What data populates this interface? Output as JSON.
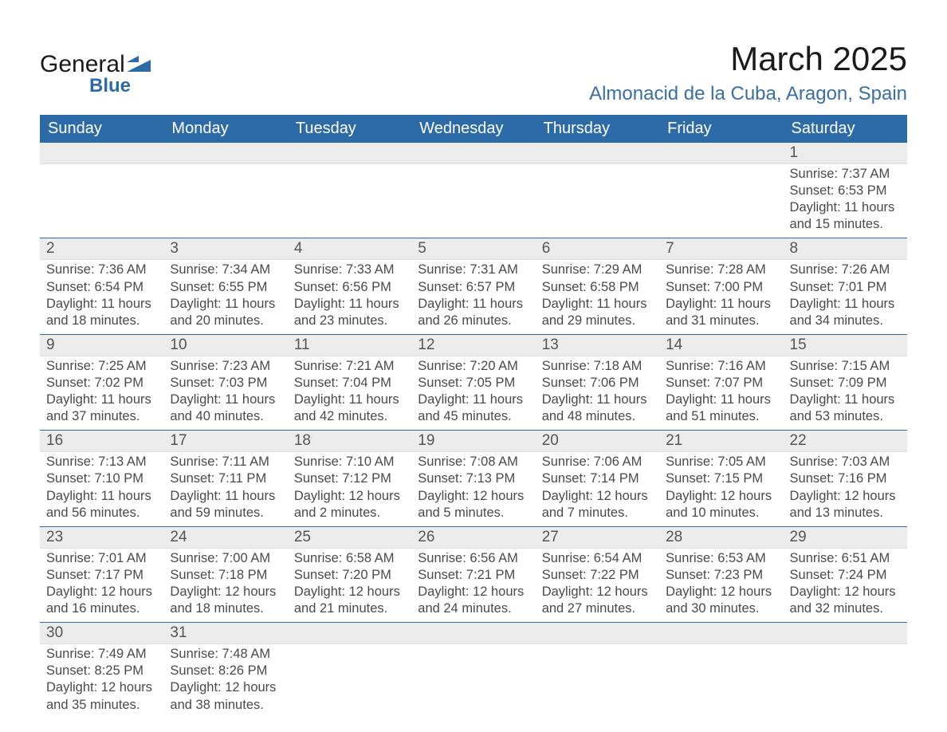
{
  "logo": {
    "main": "General",
    "sub": "Blue",
    "accent_color": "#2d6aa8"
  },
  "title": "March 2025",
  "location": "Almonacid de la Cuba, Aragon, Spain",
  "day_headers": [
    "Sunday",
    "Monday",
    "Tuesday",
    "Wednesday",
    "Thursday",
    "Friday",
    "Saturday"
  ],
  "colors": {
    "header_bg": "#2d6aa8",
    "header_text": "#ffffff",
    "daynum_bg": "#ececec",
    "border": "#2d6aa8",
    "body_text": "#4a4a4a",
    "title_text": "#1a1a1a"
  },
  "typography": {
    "title_fontsize_pt": 32,
    "location_fontsize_pt": 18,
    "header_fontsize_pt": 15,
    "cell_fontsize_pt": 12.5,
    "daynum_fontsize_pt": 14
  },
  "weeks": [
    {
      "nums": [
        "",
        "",
        "",
        "",
        "",
        "",
        "1"
      ],
      "cells": [
        null,
        null,
        null,
        null,
        null,
        null,
        {
          "sunrise": "Sunrise: 7:37 AM",
          "sunset": "Sunset: 6:53 PM",
          "dl1": "Daylight: 11 hours",
          "dl2": "and 15 minutes."
        }
      ]
    },
    {
      "nums": [
        "2",
        "3",
        "4",
        "5",
        "6",
        "7",
        "8"
      ],
      "cells": [
        {
          "sunrise": "Sunrise: 7:36 AM",
          "sunset": "Sunset: 6:54 PM",
          "dl1": "Daylight: 11 hours",
          "dl2": "and 18 minutes."
        },
        {
          "sunrise": "Sunrise: 7:34 AM",
          "sunset": "Sunset: 6:55 PM",
          "dl1": "Daylight: 11 hours",
          "dl2": "and 20 minutes."
        },
        {
          "sunrise": "Sunrise: 7:33 AM",
          "sunset": "Sunset: 6:56 PM",
          "dl1": "Daylight: 11 hours",
          "dl2": "and 23 minutes."
        },
        {
          "sunrise": "Sunrise: 7:31 AM",
          "sunset": "Sunset: 6:57 PM",
          "dl1": "Daylight: 11 hours",
          "dl2": "and 26 minutes."
        },
        {
          "sunrise": "Sunrise: 7:29 AM",
          "sunset": "Sunset: 6:58 PM",
          "dl1": "Daylight: 11 hours",
          "dl2": "and 29 minutes."
        },
        {
          "sunrise": "Sunrise: 7:28 AM",
          "sunset": "Sunset: 7:00 PM",
          "dl1": "Daylight: 11 hours",
          "dl2": "and 31 minutes."
        },
        {
          "sunrise": "Sunrise: 7:26 AM",
          "sunset": "Sunset: 7:01 PM",
          "dl1": "Daylight: 11 hours",
          "dl2": "and 34 minutes."
        }
      ]
    },
    {
      "nums": [
        "9",
        "10",
        "11",
        "12",
        "13",
        "14",
        "15"
      ],
      "cells": [
        {
          "sunrise": "Sunrise: 7:25 AM",
          "sunset": "Sunset: 7:02 PM",
          "dl1": "Daylight: 11 hours",
          "dl2": "and 37 minutes."
        },
        {
          "sunrise": "Sunrise: 7:23 AM",
          "sunset": "Sunset: 7:03 PM",
          "dl1": "Daylight: 11 hours",
          "dl2": "and 40 minutes."
        },
        {
          "sunrise": "Sunrise: 7:21 AM",
          "sunset": "Sunset: 7:04 PM",
          "dl1": "Daylight: 11 hours",
          "dl2": "and 42 minutes."
        },
        {
          "sunrise": "Sunrise: 7:20 AM",
          "sunset": "Sunset: 7:05 PM",
          "dl1": "Daylight: 11 hours",
          "dl2": "and 45 minutes."
        },
        {
          "sunrise": "Sunrise: 7:18 AM",
          "sunset": "Sunset: 7:06 PM",
          "dl1": "Daylight: 11 hours",
          "dl2": "and 48 minutes."
        },
        {
          "sunrise": "Sunrise: 7:16 AM",
          "sunset": "Sunset: 7:07 PM",
          "dl1": "Daylight: 11 hours",
          "dl2": "and 51 minutes."
        },
        {
          "sunrise": "Sunrise: 7:15 AM",
          "sunset": "Sunset: 7:09 PM",
          "dl1": "Daylight: 11 hours",
          "dl2": "and 53 minutes."
        }
      ]
    },
    {
      "nums": [
        "16",
        "17",
        "18",
        "19",
        "20",
        "21",
        "22"
      ],
      "cells": [
        {
          "sunrise": "Sunrise: 7:13 AM",
          "sunset": "Sunset: 7:10 PM",
          "dl1": "Daylight: 11 hours",
          "dl2": "and 56 minutes."
        },
        {
          "sunrise": "Sunrise: 7:11 AM",
          "sunset": "Sunset: 7:11 PM",
          "dl1": "Daylight: 11 hours",
          "dl2": "and 59 minutes."
        },
        {
          "sunrise": "Sunrise: 7:10 AM",
          "sunset": "Sunset: 7:12 PM",
          "dl1": "Daylight: 12 hours",
          "dl2": "and 2 minutes."
        },
        {
          "sunrise": "Sunrise: 7:08 AM",
          "sunset": "Sunset: 7:13 PM",
          "dl1": "Daylight: 12 hours",
          "dl2": "and 5 minutes."
        },
        {
          "sunrise": "Sunrise: 7:06 AM",
          "sunset": "Sunset: 7:14 PM",
          "dl1": "Daylight: 12 hours",
          "dl2": "and 7 minutes."
        },
        {
          "sunrise": "Sunrise: 7:05 AM",
          "sunset": "Sunset: 7:15 PM",
          "dl1": "Daylight: 12 hours",
          "dl2": "and 10 minutes."
        },
        {
          "sunrise": "Sunrise: 7:03 AM",
          "sunset": "Sunset: 7:16 PM",
          "dl1": "Daylight: 12 hours",
          "dl2": "and 13 minutes."
        }
      ]
    },
    {
      "nums": [
        "23",
        "24",
        "25",
        "26",
        "27",
        "28",
        "29"
      ],
      "cells": [
        {
          "sunrise": "Sunrise: 7:01 AM",
          "sunset": "Sunset: 7:17 PM",
          "dl1": "Daylight: 12 hours",
          "dl2": "and 16 minutes."
        },
        {
          "sunrise": "Sunrise: 7:00 AM",
          "sunset": "Sunset: 7:18 PM",
          "dl1": "Daylight: 12 hours",
          "dl2": "and 18 minutes."
        },
        {
          "sunrise": "Sunrise: 6:58 AM",
          "sunset": "Sunset: 7:20 PM",
          "dl1": "Daylight: 12 hours",
          "dl2": "and 21 minutes."
        },
        {
          "sunrise": "Sunrise: 6:56 AM",
          "sunset": "Sunset: 7:21 PM",
          "dl1": "Daylight: 12 hours",
          "dl2": "and 24 minutes."
        },
        {
          "sunrise": "Sunrise: 6:54 AM",
          "sunset": "Sunset: 7:22 PM",
          "dl1": "Daylight: 12 hours",
          "dl2": "and 27 minutes."
        },
        {
          "sunrise": "Sunrise: 6:53 AM",
          "sunset": "Sunset: 7:23 PM",
          "dl1": "Daylight: 12 hours",
          "dl2": "and 30 minutes."
        },
        {
          "sunrise": "Sunrise: 6:51 AM",
          "sunset": "Sunset: 7:24 PM",
          "dl1": "Daylight: 12 hours",
          "dl2": "and 32 minutes."
        }
      ]
    },
    {
      "nums": [
        "30",
        "31",
        "",
        "",
        "",
        "",
        ""
      ],
      "cells": [
        {
          "sunrise": "Sunrise: 7:49 AM",
          "sunset": "Sunset: 8:25 PM",
          "dl1": "Daylight: 12 hours",
          "dl2": "and 35 minutes."
        },
        {
          "sunrise": "Sunrise: 7:48 AM",
          "sunset": "Sunset: 8:26 PM",
          "dl1": "Daylight: 12 hours",
          "dl2": "and 38 minutes."
        },
        null,
        null,
        null,
        null,
        null
      ]
    }
  ]
}
